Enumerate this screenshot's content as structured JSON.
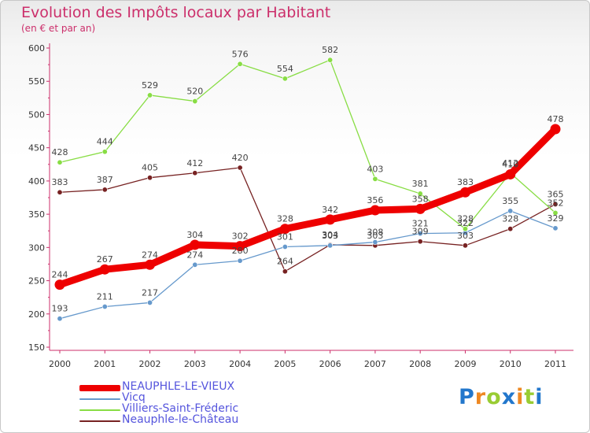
{
  "chart_data": {
    "type": "line",
    "title": "Evolution des Impôts locaux par Habitant",
    "subtitle": "(en € et par an)",
    "xlabel": "",
    "ylabel": "",
    "ylim": [
      150,
      600
    ],
    "yticks": [
      150,
      200,
      250,
      300,
      350,
      400,
      450,
      500,
      550,
      600
    ],
    "x": [
      "2000",
      "2001",
      "2002",
      "2003",
      "2004",
      "2005",
      "2006",
      "2007",
      "2008",
      "2009",
      "2010",
      "2011"
    ],
    "series": [
      {
        "name": "NEAUPHLE-LE-VIEUX",
        "color": "#ee0000",
        "values": [
          244,
          267,
          274,
          304,
          302,
          328,
          342,
          356,
          358,
          383,
          410,
          478
        ]
      },
      {
        "name": "Vicq",
        "color": "#6699cc",
        "values": [
          193,
          211,
          217,
          274,
          280,
          301,
          303,
          308,
          321,
          322,
          355,
          329
        ]
      },
      {
        "name": "Villiers-Saint-Fréderic",
        "color": "#88dd44",
        "values": [
          428,
          444,
          529,
          520,
          576,
          554,
          582,
          403,
          381,
          328,
          412,
          352
        ]
      },
      {
        "name": "Neauphle-le-Château",
        "color": "#772222",
        "values": [
          383,
          387,
          405,
          412,
          420,
          264,
          304,
          303,
          309,
          303,
          328,
          365
        ]
      }
    ],
    "legend_position": "bottom-left",
    "grid": false
  },
  "logo": {
    "text": "Proxiti",
    "letters": [
      "P",
      "r",
      "o",
      "x",
      "i",
      "t",
      "i"
    ],
    "letter_colors": [
      "#2277cc",
      "#ee8822",
      "#99cc33",
      "#2277cc",
      "#ee8822",
      "#99cc33",
      "#2277cc"
    ]
  }
}
